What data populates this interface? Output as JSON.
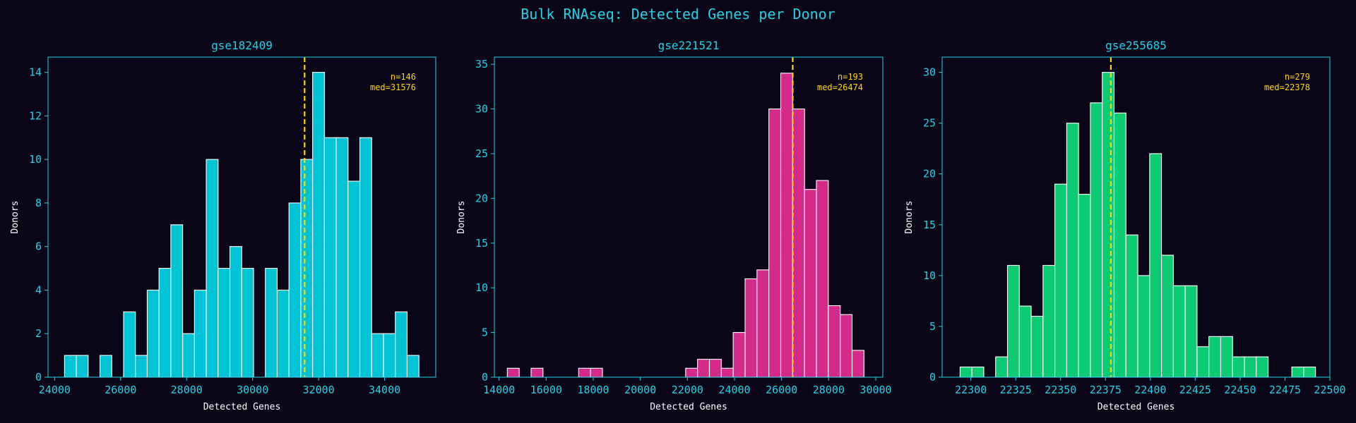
{
  "figure": {
    "title": "Bulk RNAseq: Detected Genes per Donor",
    "background": "#0b0518",
    "text_color": "#22d3e6",
    "median_line_color": "#ffd60a"
  },
  "chart_data": [
    {
      "type": "histogram",
      "title": "gse182409",
      "xlabel": "Detected Genes",
      "ylabel": "Donors",
      "color": "#00c4d6",
      "xlim": [
        23800,
        35550
      ],
      "ylim": [
        0,
        14.7
      ],
      "xticks": [
        24000,
        26000,
        28000,
        30000,
        32000,
        34000
      ],
      "yticks": [
        0,
        2,
        4,
        6,
        8,
        10,
        12,
        14
      ],
      "bin_start": 24300,
      "bin_width": 358,
      "counts": [
        1,
        1,
        0,
        1,
        0,
        3,
        1,
        4,
        5,
        7,
        2,
        4,
        10,
        5,
        6,
        5,
        0,
        5,
        4,
        8,
        10,
        14,
        11,
        11,
        9,
        11,
        2,
        2,
        3,
        1
      ],
      "median": 31576,
      "annotations": [
        "n=146",
        "med=31576"
      ]
    },
    {
      "type": "histogram",
      "title": "gse221521",
      "xlabel": "Detected Genes",
      "ylabel": "Donors",
      "color": "#d42a8a",
      "xlim": [
        13800,
        30300
      ],
      "ylim": [
        0,
        35.8
      ],
      "xticks": [
        14000,
        16000,
        18000,
        20000,
        22000,
        24000,
        26000,
        28000,
        30000
      ],
      "yticks": [
        0,
        5,
        10,
        15,
        20,
        25,
        30,
        35
      ],
      "bin_start": 14350,
      "bin_width": 505,
      "counts": [
        1,
        0,
        1,
        0,
        0,
        0,
        1,
        1,
        0,
        0,
        0,
        0,
        0,
        0,
        0,
        1,
        2,
        2,
        1,
        5,
        11,
        12,
        30,
        34,
        30,
        21,
        22,
        8,
        7,
        3
      ],
      "median": 26474,
      "annotations": [
        "n=193",
        "med=26474"
      ]
    },
    {
      "type": "histogram",
      "title": "gse255685",
      "xlabel": "Detected Genes",
      "ylabel": "Donors",
      "color": "#0ccb72",
      "xlim": [
        22284,
        22500
      ],
      "ylim": [
        0,
        31.5
      ],
      "xticks": [
        22300,
        22325,
        22350,
        22375,
        22400,
        22425,
        22450,
        22475,
        22500
      ],
      "yticks": [
        0,
        5,
        10,
        15,
        20,
        25,
        30
      ],
      "bin_start": 22294,
      "bin_width": 6.6,
      "counts": [
        1,
        1,
        0,
        2,
        11,
        7,
        6,
        11,
        19,
        25,
        18,
        27,
        30,
        26,
        14,
        10,
        22,
        12,
        9,
        9,
        3,
        4,
        4,
        2,
        2,
        2,
        0,
        0,
        1,
        1
      ],
      "median": 22378,
      "annotations": [
        "n=279",
        "med=22378"
      ]
    }
  ]
}
